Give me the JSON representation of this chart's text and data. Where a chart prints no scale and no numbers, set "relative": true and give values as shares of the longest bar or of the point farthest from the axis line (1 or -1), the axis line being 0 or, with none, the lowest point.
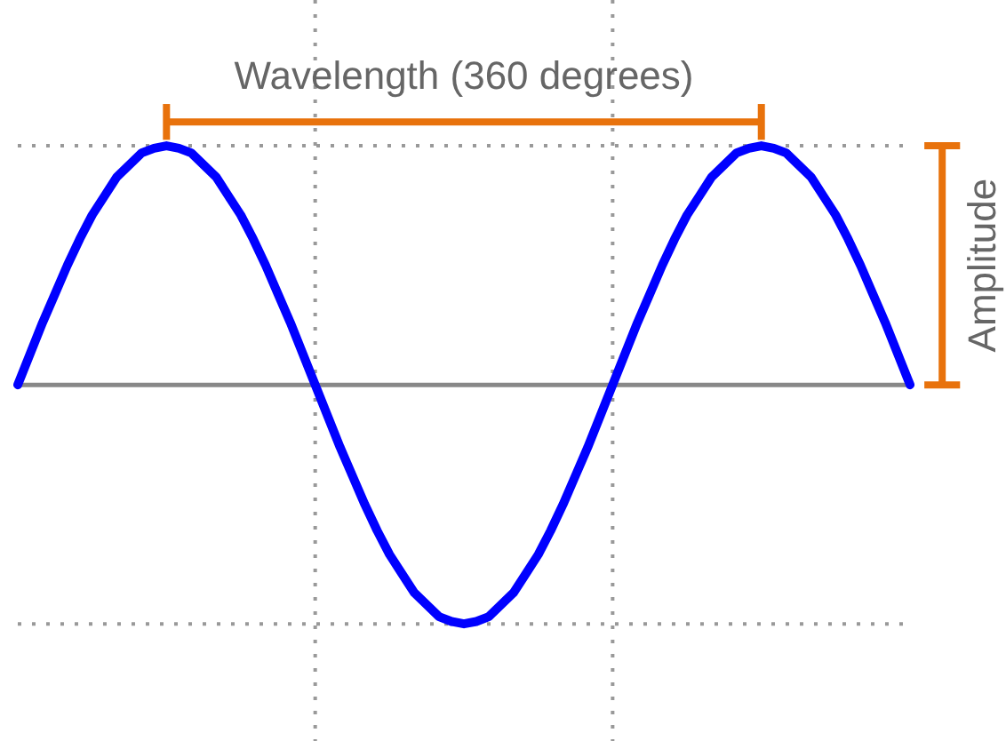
{
  "chart_data": {
    "type": "line",
    "relative": true,
    "categories": [
      null,
      null,
      null,
      null,
      null,
      null,
      null,
      null,
      null,
      null,
      null,
      null,
      null,
      null,
      null,
      null,
      null,
      null,
      null,
      null,
      null,
      null,
      null,
      null,
      null,
      null,
      null,
      null,
      null,
      null,
      null,
      null,
      null,
      null,
      null,
      null,
      null,
      null,
      null,
      null,
      null,
      null,
      null,
      null,
      null,
      null,
      null,
      null,
      null,
      null,
      null,
      null,
      null,
      null,
      null,
      null,
      null,
      null,
      null,
      null,
      null,
      null,
      null,
      null,
      null,
      null,
      null,
      null,
      null,
      null,
      null,
      null,
      null
    ],
    "series": [
      {
        "color": "#0000ff",
        "values": [
          0,
          0.13,
          0.26,
          0.38,
          0.5,
          0.61,
          0.71,
          0.79,
          0.87,
          0.92,
          0.97,
          0.99,
          1,
          0.99,
          0.97,
          0.92,
          0.87,
          0.79,
          0.71,
          0.61,
          0.5,
          0.38,
          0.26,
          0.13,
          0,
          -0.13,
          -0.26,
          -0.38,
          -0.5,
          -0.61,
          -0.71,
          -0.79,
          -0.87,
          -0.92,
          -0.97,
          -0.99,
          -1,
          -0.99,
          -0.97,
          -0.92,
          -0.87,
          -0.79,
          -0.71,
          -0.61,
          -0.5,
          -0.38,
          -0.26,
          -0.13,
          0,
          0.13,
          0.26,
          0.38,
          0.5,
          0.61,
          0.71,
          0.79,
          0.87,
          0.92,
          0.97,
          0.99,
          1,
          0.99,
          0.97,
          0.92,
          0.87,
          0.79,
          0.71,
          0.61,
          0.5,
          0.38,
          0.26,
          0.13,
          0
        ]
      }
    ],
    "annotations": [
      "Wavelength (360 degrees)",
      "Amplitude"
    ]
  }
}
